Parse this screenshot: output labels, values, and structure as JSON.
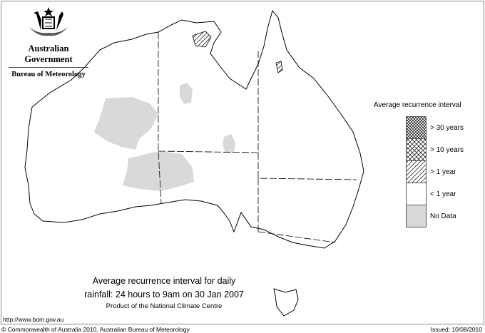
{
  "header": {
    "org": "Australian Government",
    "bureau": "Bureau of Meteorology"
  },
  "title": {
    "line1": "Average recurrence interval for daily",
    "line2": "rainfall: 24 hours to 9am on 30 Jan 2007",
    "line3": "Product of the National Climate Centre"
  },
  "footer": {
    "url": "http://www.bom.gov.au",
    "copyright": "© Commonwealth of Australia 2010, Australian Bureau of Meteorology",
    "issued": "Issued: 10/08/2010"
  },
  "legend": {
    "title": "Average recurrence interval",
    "items": [
      {
        "label": "> 30 years",
        "pattern": "dense-crosshatch"
      },
      {
        "label": "> 10 years",
        "pattern": "crosshatch"
      },
      {
        "label": "> 1 year",
        "pattern": "diagonal-hatch"
      },
      {
        "label": "< 1 year",
        "pattern": "none"
      },
      {
        "label": "No Data",
        "pattern": "solid",
        "color": "#d9d9d9"
      }
    ]
  },
  "colors": {
    "no_data": "#d9d9d9",
    "outline": "#000000"
  }
}
